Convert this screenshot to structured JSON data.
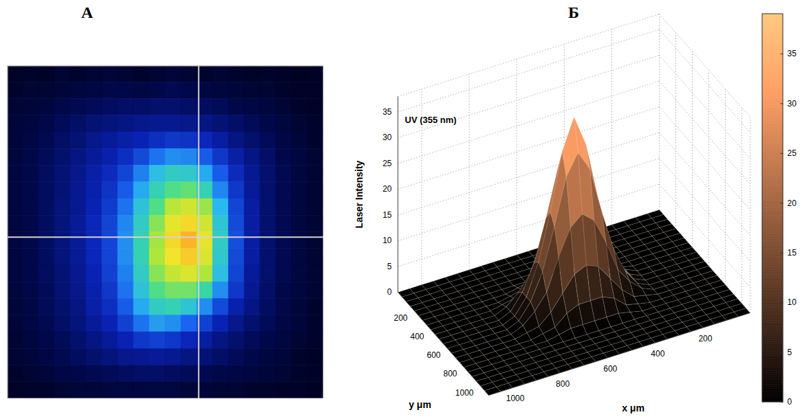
{
  "chart_data": [
    {
      "type": "heatmap",
      "label": "А",
      "tick_labels": false,
      "value_range": [
        0,
        100
      ],
      "crosshair": [
        12.1,
        10.3
      ],
      "cells": [
        [
          4,
          5,
          4,
          6,
          5,
          6,
          7,
          6,
          5,
          6,
          7,
          6,
          5,
          6,
          5,
          4,
          5,
          4,
          3,
          4
        ],
        [
          5,
          6,
          6,
          7,
          8,
          9,
          10,
          10,
          9,
          10,
          11,
          10,
          9,
          8,
          7,
          6,
          6,
          5,
          4,
          4
        ],
        [
          6,
          7,
          8,
          10,
          11,
          12,
          13,
          14,
          14,
          15,
          15,
          14,
          13,
          12,
          10,
          9,
          8,
          6,
          5,
          4
        ],
        [
          7,
          8,
          10,
          12,
          14,
          16,
          17,
          18,
          19,
          20,
          20,
          19,
          18,
          16,
          14,
          12,
          10,
          8,
          6,
          5
        ],
        [
          7,
          9,
          11,
          14,
          16,
          19,
          21,
          23,
          25,
          28,
          30,
          29,
          26,
          22,
          18,
          15,
          12,
          9,
          7,
          5
        ],
        [
          8,
          10,
          12,
          15,
          18,
          21,
          24,
          28,
          34,
          42,
          46,
          45,
          38,
          30,
          23,
          18,
          14,
          10,
          8,
          6
        ],
        [
          8,
          10,
          13,
          16,
          19,
          23,
          27,
          33,
          44,
          54,
          58,
          57,
          50,
          38,
          27,
          20,
          15,
          11,
          8,
          6
        ],
        [
          8,
          10,
          13,
          16,
          20,
          24,
          29,
          38,
          50,
          60,
          66,
          68,
          60,
          45,
          30,
          21,
          15,
          11,
          8,
          6
        ],
        [
          8,
          10,
          13,
          17,
          20,
          25,
          31,
          42,
          55,
          66,
          78,
          82,
          74,
          52,
          33,
          22,
          15,
          11,
          8,
          6
        ],
        [
          8,
          10,
          13,
          17,
          21,
          26,
          33,
          45,
          58,
          72,
          86,
          90,
          82,
          56,
          34,
          22,
          15,
          11,
          8,
          6
        ],
        [
          8,
          10,
          13,
          17,
          21,
          26,
          33,
          46,
          60,
          75,
          90,
          96,
          86,
          58,
          35,
          22,
          15,
          11,
          8,
          6
        ],
        [
          8,
          10,
          13,
          17,
          21,
          26,
          33,
          46,
          60,
          76,
          88,
          92,
          84,
          57,
          34,
          22,
          15,
          11,
          8,
          6
        ],
        [
          8,
          10,
          13,
          16,
          20,
          25,
          32,
          44,
          58,
          72,
          80,
          84,
          76,
          54,
          33,
          21,
          15,
          11,
          8,
          6
        ],
        [
          8,
          10,
          12,
          16,
          19,
          24,
          30,
          42,
          55,
          66,
          70,
          70,
          62,
          46,
          30,
          20,
          14,
          10,
          8,
          6
        ],
        [
          7,
          9,
          12,
          15,
          18,
          23,
          28,
          38,
          50,
          58,
          60,
          56,
          46,
          34,
          24,
          18,
          13,
          10,
          7,
          5
        ],
        [
          7,
          9,
          11,
          14,
          17,
          21,
          25,
          32,
          42,
          48,
          46,
          40,
          32,
          25,
          19,
          15,
          12,
          9,
          7,
          5
        ],
        [
          6,
          8,
          10,
          12,
          15,
          18,
          21,
          25,
          30,
          32,
          30,
          26,
          22,
          18,
          15,
          12,
          10,
          8,
          6,
          5
        ],
        [
          6,
          7,
          9,
          11,
          13,
          15,
          17,
          19,
          20,
          21,
          20,
          18,
          16,
          14,
          12,
          10,
          8,
          7,
          5,
          4
        ],
        [
          5,
          6,
          7,
          9,
          10,
          11,
          12,
          13,
          14,
          14,
          13,
          12,
          11,
          10,
          9,
          8,
          7,
          6,
          5,
          4
        ],
        [
          4,
          5,
          5,
          6,
          7,
          7,
          8,
          8,
          8,
          8,
          8,
          7,
          7,
          6,
          6,
          5,
          5,
          4,
          4,
          3
        ]
      ]
    },
    {
      "type": "surface",
      "label": "Б",
      "title": "UV (355 nm)",
      "xlabel": "x μm",
      "ylabel": "y μm",
      "zlabel": "Laser Intensity",
      "grid": true,
      "xlim": [
        0,
        1100
      ],
      "xticks": [
        200,
        400,
        600,
        800,
        1000
      ],
      "ylim": [
        0,
        1100
      ],
      "yticks": [
        200,
        400,
        600,
        800,
        1000
      ],
      "zlim": [
        0,
        38
      ],
      "zticks": [
        0,
        5,
        10,
        15,
        20,
        25,
        30,
        35
      ],
      "colorbar": {
        "range": [
          0,
          39
        ],
        "ticks": [
          0,
          5,
          10,
          15,
          20,
          25,
          30,
          35
        ]
      },
      "x": [
        0,
        50,
        100,
        150,
        200,
        250,
        300,
        350,
        400,
        450,
        500,
        550,
        600,
        650,
        700,
        750,
        800,
        850,
        900,
        950,
        1000,
        1050,
        1100
      ],
      "y": [
        0,
        50,
        100,
        150,
        200,
        250,
        300,
        350,
        400,
        450,
        500,
        550,
        600,
        650,
        700,
        750,
        800,
        850,
        900,
        950,
        1000,
        1050,
        1100
      ],
      "z": [
        [
          0,
          0,
          0,
          0,
          0,
          0,
          0,
          0,
          0,
          0,
          0,
          0,
          0,
          0,
          0,
          0,
          0,
          0,
          0,
          0,
          0,
          0,
          0
        ],
        [
          0,
          0,
          0,
          0,
          0,
          0,
          0,
          0,
          0,
          0,
          0,
          0,
          0,
          0,
          0,
          0,
          0,
          0,
          0,
          0,
          0,
          0,
          0
        ],
        [
          0,
          0,
          0,
          0,
          0,
          0,
          0,
          0,
          0,
          0,
          0,
          0,
          0,
          0,
          0,
          0,
          0,
          0,
          0,
          0,
          0,
          0,
          0
        ],
        [
          0,
          0,
          0,
          0,
          0,
          0,
          0,
          0,
          0,
          0,
          0,
          0,
          0,
          0,
          0,
          0,
          0,
          0,
          0,
          0,
          0,
          0,
          0
        ],
        [
          0,
          0,
          0,
          0,
          0,
          0,
          0,
          0,
          0,
          0,
          0,
          0,
          0,
          0,
          0,
          0,
          0,
          0,
          0,
          0,
          0,
          0,
          0
        ],
        [
          0,
          0,
          0,
          0,
          0,
          0,
          0,
          0,
          0,
          0,
          0,
          0,
          0,
          0,
          0,
          0,
          0,
          0,
          0,
          0,
          0,
          0,
          0
        ],
        [
          0,
          0,
          0,
          0,
          0,
          0,
          0,
          0,
          0.5,
          1,
          1,
          1,
          1,
          1,
          0.5,
          0,
          0,
          0,
          0,
          0,
          0,
          0,
          0
        ],
        [
          0,
          0,
          0,
          0,
          0,
          0,
          0,
          0.5,
          1,
          3,
          4,
          4,
          4,
          3,
          1,
          0.5,
          0,
          0,
          0,
          0,
          0,
          0,
          0
        ],
        [
          0,
          0,
          0,
          0,
          0,
          0,
          0.5,
          1,
          3,
          6,
          9,
          10,
          9,
          6,
          3,
          1,
          0.5,
          0,
          0,
          0,
          0,
          0,
          0
        ],
        [
          0,
          0,
          0,
          0,
          0,
          0,
          1,
          3,
          6,
          12,
          17,
          19,
          17,
          12,
          6,
          3,
          1,
          0,
          0,
          0,
          0,
          0,
          0
        ],
        [
          0,
          0,
          0,
          0,
          0,
          0,
          1,
          4,
          9,
          17,
          26,
          30,
          26,
          17,
          9,
          4,
          1,
          0,
          0,
          0,
          0,
          0,
          0
        ],
        [
          0,
          0,
          0,
          0,
          0,
          0,
          1,
          4,
          10,
          19,
          30,
          36,
          30,
          19,
          10,
          4,
          1,
          0,
          0,
          0,
          0,
          0,
          0
        ],
        [
          0,
          0,
          0,
          0,
          0,
          0,
          1,
          4,
          9,
          17,
          26,
          30,
          26,
          17,
          9,
          4,
          1,
          0,
          0,
          0,
          0,
          0,
          0
        ],
        [
          0,
          0,
          0,
          0,
          0,
          0,
          1,
          3,
          6,
          12,
          17,
          19,
          17,
          12,
          6,
          3,
          1,
          0,
          0,
          0,
          0,
          0,
          0
        ],
        [
          0,
          0,
          0,
          0,
          0,
          0,
          0.5,
          1,
          3,
          6,
          9,
          10,
          9,
          6,
          3,
          1,
          0.5,
          0,
          0,
          0,
          0,
          0,
          0
        ],
        [
          0,
          0,
          0,
          0,
          0,
          0,
          0,
          0.5,
          1,
          3,
          4,
          4,
          4,
          3,
          1,
          0.5,
          0,
          0,
          0,
          0,
          0,
          0,
          0
        ],
        [
          0,
          0,
          0,
          0,
          0,
          0,
          0,
          0,
          0.5,
          1,
          1,
          1,
          1,
          1,
          0.5,
          0,
          0,
          0,
          0,
          0,
          0,
          0,
          0
        ],
        [
          0,
          0,
          0,
          0,
          0,
          0,
          0,
          0,
          0,
          0,
          0,
          0,
          0,
          0,
          0,
          0,
          0,
          0,
          0,
          0,
          0,
          0,
          0
        ],
        [
          0,
          0,
          0,
          0,
          0,
          0,
          0,
          0,
          0,
          0,
          0,
          0,
          0,
          0,
          0,
          0,
          0,
          0,
          0,
          0,
          0,
          0,
          0
        ],
        [
          0,
          0,
          0,
          0,
          0,
          0,
          0,
          0,
          0,
          0,
          0,
          0,
          0,
          0,
          0,
          0,
          0,
          0,
          0,
          0,
          0,
          0,
          0
        ],
        [
          0,
          0,
          0,
          0,
          0,
          0,
          0,
          0,
          0,
          0,
          0,
          0,
          0,
          0,
          0,
          0,
          0,
          0,
          0,
          0,
          0,
          0,
          0
        ],
        [
          0,
          0,
          0,
          0,
          0,
          0,
          0,
          0,
          0,
          0,
          0,
          0,
          0,
          0,
          0,
          0,
          0,
          0,
          0,
          0,
          0,
          0,
          0
        ],
        [
          0,
          0,
          0,
          0,
          0,
          0,
          0,
          0,
          0,
          0,
          0,
          0,
          0,
          0,
          0,
          0,
          0,
          0,
          0,
          0,
          0,
          0,
          0
        ]
      ]
    }
  ]
}
